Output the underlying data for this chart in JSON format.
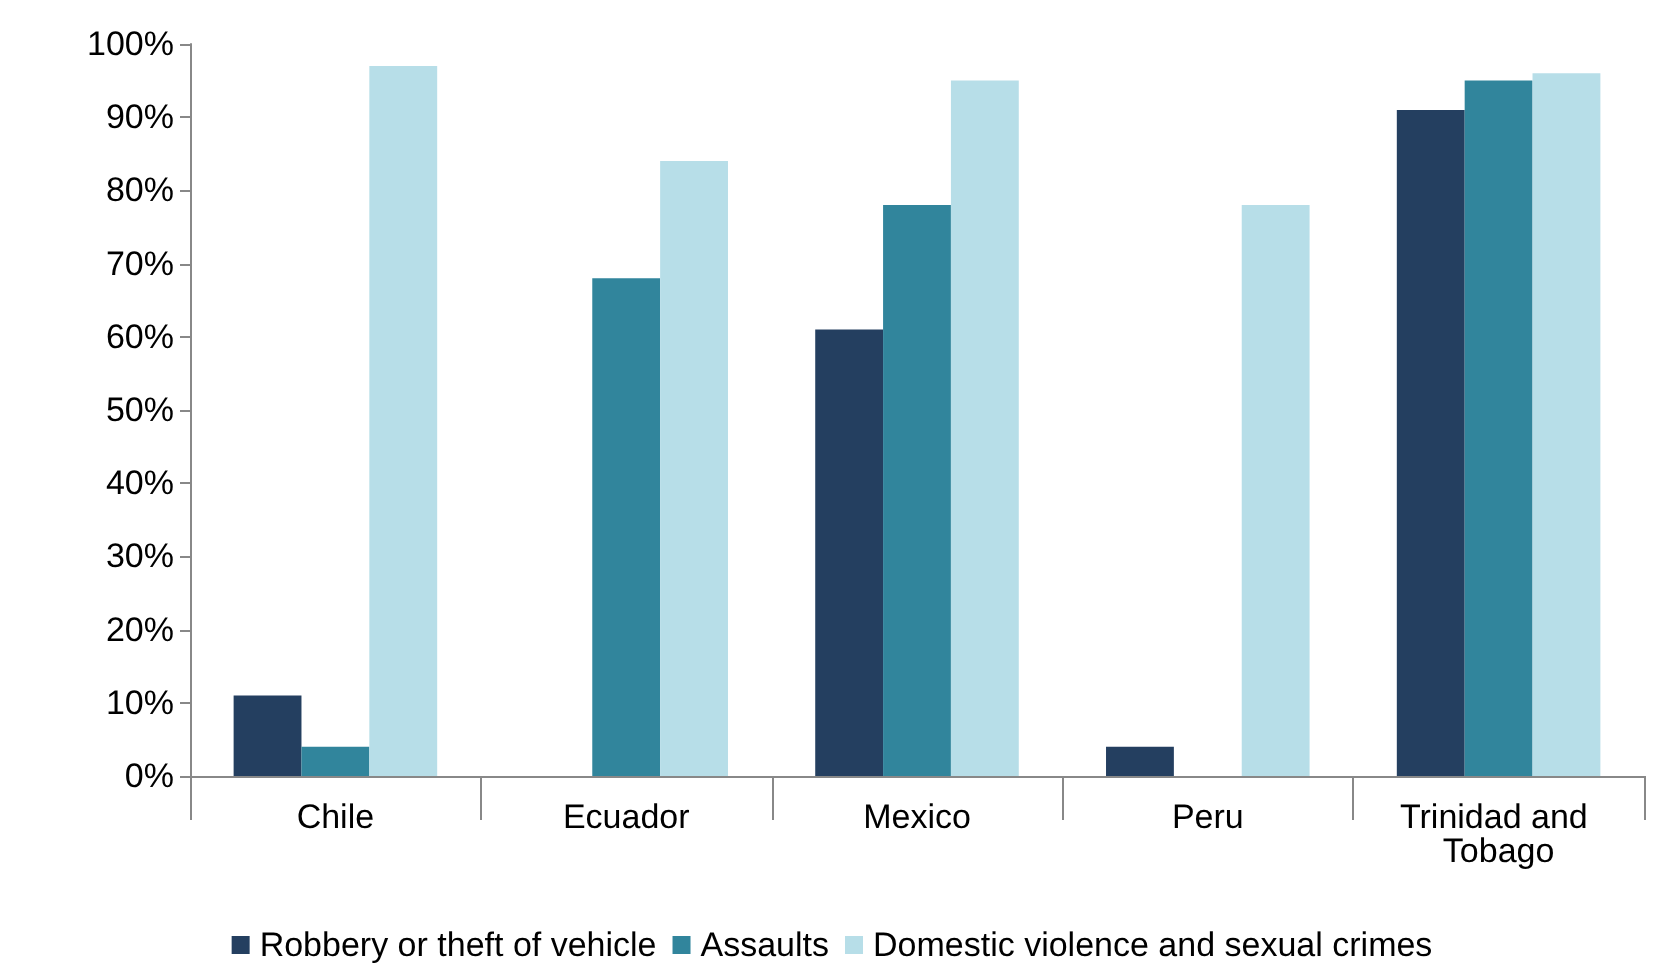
{
  "chart_data": {
    "type": "bar",
    "categories": [
      "Chile",
      "Ecuador",
      "Mexico",
      "Peru",
      "Trinidad and Tobago"
    ],
    "series": [
      {
        "name": "Robbery or theft of vehicle",
        "color": "#243f60",
        "values": [
          11,
          null,
          61,
          4,
          91
        ]
      },
      {
        "name": "Assaults",
        "color": "#31859c",
        "values": [
          4,
          68,
          78,
          null,
          95
        ]
      },
      {
        "name": "Domestic violence and sexual crimes",
        "color": "#b7dee8",
        "values": [
          97,
          84,
          95,
          78,
          96
        ]
      }
    ],
    "ylim": [
      0,
      100
    ],
    "yticks": [
      {
        "value": 0,
        "label": "0%"
      },
      {
        "value": 10,
        "label": "10%"
      },
      {
        "value": 20,
        "label": "20%"
      },
      {
        "value": 30,
        "label": "30%"
      },
      {
        "value": 40,
        "label": "40%"
      },
      {
        "value": 50,
        "label": "50%"
      },
      {
        "value": 60,
        "label": "60%"
      },
      {
        "value": 70,
        "label": "70%"
      },
      {
        "value": 80,
        "label": "80%"
      },
      {
        "value": 90,
        "label": "90%"
      },
      {
        "value": 100,
        "label": "100%"
      }
    ],
    "grid": false,
    "legend": "bottom"
  }
}
